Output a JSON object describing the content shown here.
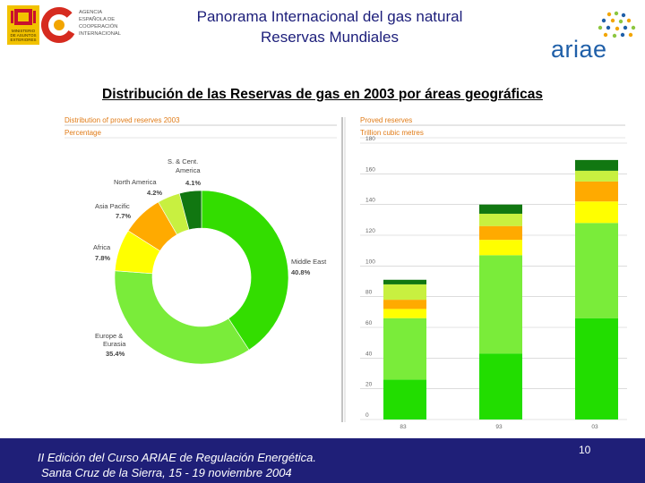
{
  "header": {
    "title_line1": "Panorama Internacional del gas natural",
    "title_line2": "Reservas Mundiales",
    "subtitle": "Distribución de las Reservas de gas en 2003 por áreas geográficas",
    "aecid_lines": [
      "AGENCIA",
      "ESPAÑOLA DE",
      "COOPERACIÓN",
      "INTERNACIONAL"
    ],
    "ministry_lines": [
      "MINISTERIO",
      "DE ASUNTOS",
      "EXTERIORES"
    ],
    "ariae_logo": "ariae"
  },
  "footer": {
    "line1": "II Edición del Curso ARIAE de Regulación Energética.",
    "line2": "Santa Cruz de la Sierra, 15 - 19 noviembre 2004",
    "page_number": "10"
  },
  "colors": {
    "header_text": "#1c1e7a",
    "footer_bg": "#1f1f78",
    "chart_title_orange": "#e07b17",
    "middle_east": "#33dd00",
    "europe_eurasia": "#7aec3a",
    "africa": "#ffff00",
    "asia_pacific": "#ffaa00",
    "north_america": "#c8f040",
    "sc_america": "#117711"
  },
  "chart_data": [
    {
      "type": "pie",
      "style": "donut",
      "title": "Distribution of proved reserves 2003",
      "subtitle": "Percentage",
      "slices": [
        {
          "name": "Middle East",
          "value": 40.8,
          "label": "40.8%",
          "color": "#33dd00"
        },
        {
          "name": "Europe & Eurasia",
          "value": 35.4,
          "label": "35.4%",
          "color": "#7aec3a"
        },
        {
          "name": "Africa",
          "value": 7.8,
          "label": "7.8%",
          "color": "#ffff00"
        },
        {
          "name": "Asia Pacific",
          "value": 7.7,
          "label": "7.7%",
          "color": "#ffaa00"
        },
        {
          "name": "North America",
          "value": 4.2,
          "label": "4.2%",
          "color": "#c8f040"
        },
        {
          "name": "S. & Cent. America",
          "value": 4.1,
          "label": "4.1%",
          "color": "#117711"
        }
      ],
      "label_names": {
        "middle_east": [
          "Middle East"
        ],
        "europe": [
          "Europe &",
          "Eurasia"
        ],
        "africa": [
          "Africa"
        ],
        "asia": [
          "Asia Pacific"
        ],
        "north_america": [
          "North America"
        ],
        "sc_america": [
          "S. & Cent.",
          "America"
        ]
      }
    },
    {
      "type": "bar",
      "stacked": true,
      "title": "Proved reserves",
      "ylabel": "Trillion cubic metres",
      "categories": [
        "83",
        "93",
        "03"
      ],
      "ylim": [
        0,
        180
      ],
      "yticks": [
        0,
        20,
        40,
        60,
        80,
        100,
        120,
        140,
        160,
        180
      ],
      "series": [
        {
          "name": "Europe & Eurasia",
          "values": [
            26,
            43,
            66
          ],
          "color": "#22dd00"
        },
        {
          "name": "Middle East",
          "values": [
            40,
            64,
            62
          ],
          "color": "#7aec3a"
        },
        {
          "name": "Africa",
          "values": [
            6,
            10,
            14
          ],
          "color": "#ffff00"
        },
        {
          "name": "Asia Pacific",
          "values": [
            6,
            9,
            13
          ],
          "color": "#ffaa00"
        },
        {
          "name": "North America",
          "values": [
            10,
            8,
            7
          ],
          "color": "#c8f040"
        },
        {
          "name": "S. & Cent. America",
          "values": [
            3,
            6,
            7
          ],
          "color": "#117711"
        }
      ]
    }
  ]
}
